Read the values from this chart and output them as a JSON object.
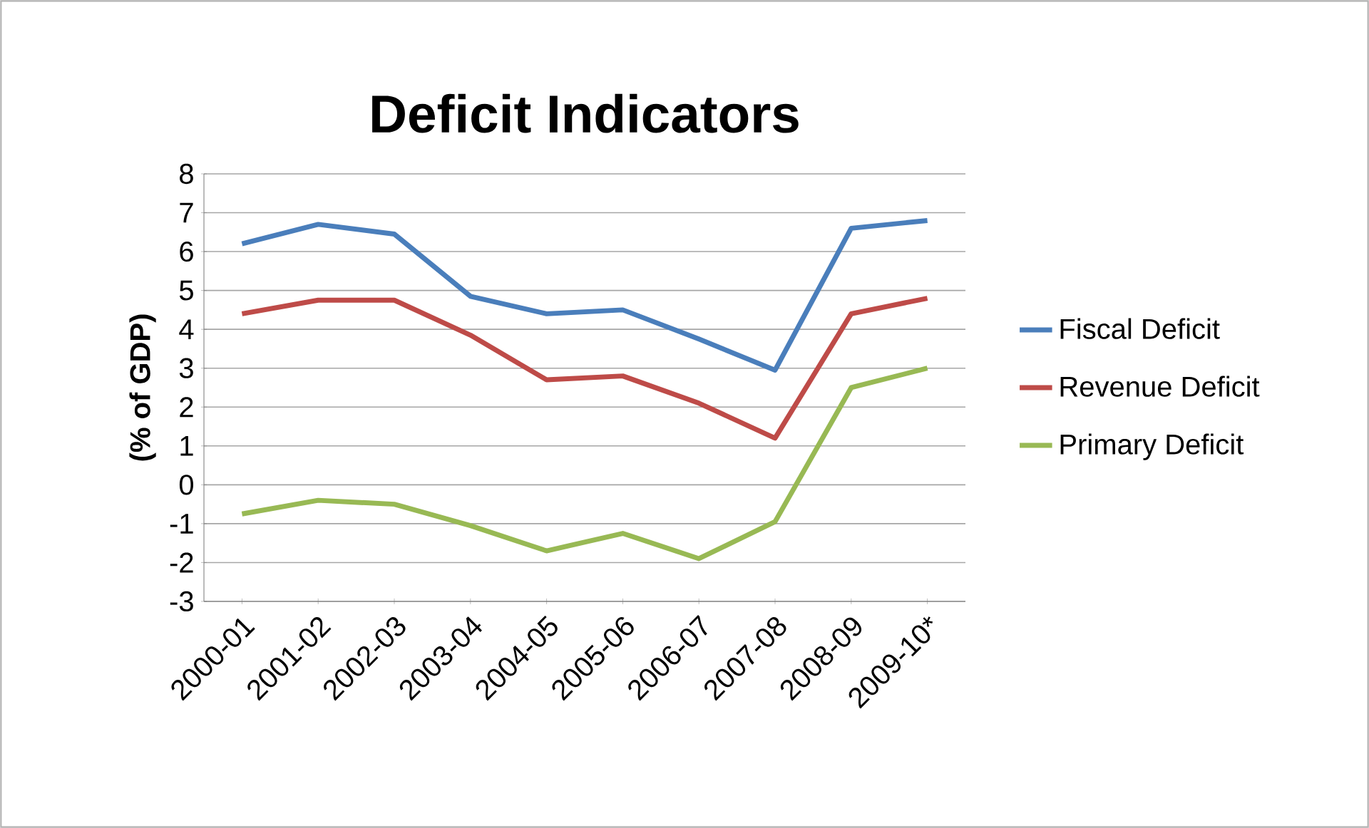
{
  "chart_data": {
    "type": "line",
    "title": "Deficit Indicators",
    "ylabel": "(% of GDP)",
    "categories": [
      "2000-01",
      "2001-02",
      "2002-03",
      "2003-04",
      "2004-05",
      "2005-06",
      "2006-07",
      "2007-08",
      "2008-09",
      "2009-10*"
    ],
    "series": [
      {
        "name": "Fiscal Deficit",
        "color": "#4a7ebb",
        "values": [
          6.2,
          6.7,
          6.45,
          4.85,
          4.4,
          4.5,
          3.75,
          2.95,
          6.6,
          6.8
        ]
      },
      {
        "name": "Revenue Deficit",
        "color": "#be4b48",
        "values": [
          4.4,
          4.75,
          4.75,
          3.85,
          2.7,
          2.8,
          2.1,
          1.2,
          4.4,
          4.8
        ]
      },
      {
        "name": "Primary Deficit",
        "color": "#98b954",
        "values": [
          -0.75,
          -0.4,
          -0.5,
          -1.05,
          -1.7,
          -1.25,
          -1.9,
          -0.95,
          2.5,
          3.0
        ]
      }
    ],
    "ylim": [
      -3,
      8
    ],
    "yticks": [
      -3,
      -2,
      -1,
      0,
      1,
      2,
      3,
      4,
      5,
      6,
      7,
      8
    ],
    "grid": "y",
    "legend": "right",
    "marker": "none",
    "line_style": "solid"
  }
}
